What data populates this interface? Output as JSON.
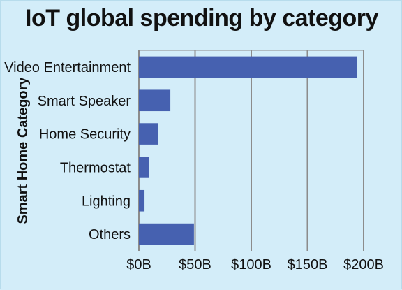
{
  "chart_data": {
    "type": "bar",
    "orientation": "horizontal",
    "title": "IoT global spending by category",
    "xlabel": "",
    "ylabel": "Smart Home Category",
    "categories": [
      "Video Entertainment",
      "Smart Speaker",
      "Home Security",
      "Thermostat",
      "Lighting",
      "Others"
    ],
    "values": [
      194,
      28,
      17,
      9,
      5,
      49
    ],
    "xlim": [
      0,
      200
    ],
    "xticks": [
      0,
      50,
      100,
      150,
      200
    ],
    "xtick_labels": [
      "$0B",
      "$50B",
      "$100B",
      "$150B",
      "$200B"
    ],
    "grid": true,
    "legend": "none",
    "colors": {
      "bar": "#4661b0",
      "background": "#d3edf9",
      "grid": "#8c8c8c",
      "text": "#111111"
    }
  }
}
